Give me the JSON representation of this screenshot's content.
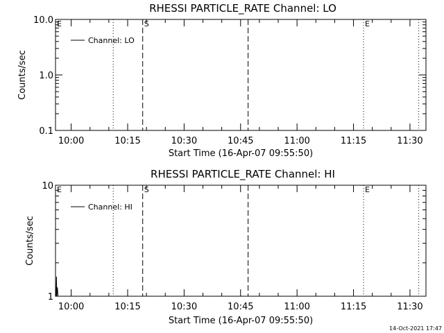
{
  "footer": {
    "timestamp": "14-Oct-2021 17:47"
  },
  "chart_data": [
    {
      "type": "line",
      "title": "RHESSI PARTICLE_RATE Channel: LO",
      "xlabel": "Start Time (16-Apr-07 09:55:50)",
      "ylabel": "Counts/sec",
      "yscale": "log",
      "ylim": [
        0.1,
        10.0
      ],
      "ytick_values": [
        0.1,
        1.0,
        10.0
      ],
      "ytick_labels": [
        "0.1",
        "1.0",
        "10.0"
      ],
      "xlim": [
        "09:55:50",
        "11:34:15"
      ],
      "xtick_values": [
        "10:00",
        "10:15",
        "10:30",
        "10:45",
        "11:00",
        "11:15",
        "11:30"
      ],
      "xtick_labels": [
        "10:00",
        "10:15",
        "10:30",
        "10:45",
        "11:00",
        "11:15",
        "11:30"
      ],
      "legend": {
        "placement": "top-left",
        "entries": [
          "Channel: LO"
        ]
      },
      "markers": [
        {
          "label": "E",
          "time": "09:55:50",
          "style": "none"
        },
        {
          "label": "",
          "time": "10:11:10",
          "style": "dotted"
        },
        {
          "label": "S",
          "time": "10:19:00",
          "style": "dashed"
        },
        {
          "label": "",
          "time": "10:47:00",
          "style": "dashed"
        },
        {
          "label": "E",
          "time": "11:17:40",
          "style": "dotted"
        },
        {
          "label": "",
          "time": "11:32:20",
          "style": "dotted"
        }
      ],
      "series": [
        {
          "name": "Channel: LO",
          "x": [],
          "y": []
        }
      ]
    },
    {
      "type": "line",
      "title": "RHESSI PARTICLE_RATE Channel: HI",
      "xlabel": "Start Time (16-Apr-07 09:55:50)",
      "ylabel": "Counts/sec",
      "yscale": "log",
      "ylim": [
        1,
        10
      ],
      "ytick_values": [
        1,
        10
      ],
      "ytick_labels": [
        "1",
        "10"
      ],
      "xlim": [
        "09:55:50",
        "11:34:15"
      ],
      "xtick_values": [
        "10:00",
        "10:15",
        "10:30",
        "10:45",
        "11:00",
        "11:15",
        "11:30"
      ],
      "xtick_labels": [
        "10:00",
        "10:15",
        "10:30",
        "10:45",
        "11:00",
        "11:15",
        "11:30"
      ],
      "legend": {
        "placement": "top-left",
        "entries": [
          "Channel: HI"
        ]
      },
      "markers": [
        {
          "label": "E",
          "time": "09:55:50",
          "style": "none"
        },
        {
          "label": "",
          "time": "10:11:10",
          "style": "dotted"
        },
        {
          "label": "S",
          "time": "10:19:00",
          "style": "dashed"
        },
        {
          "label": "",
          "time": "10:47:00",
          "style": "dashed"
        },
        {
          "label": "E",
          "time": "11:17:40",
          "style": "dotted"
        },
        {
          "label": "",
          "time": "11:32:20",
          "style": "dotted"
        }
      ],
      "series": [
        {
          "name": "Channel: HI",
          "x": [
            "09:56:00",
            "09:56:05",
            "09:56:10",
            "09:56:20",
            "09:56:30",
            "09:56:40"
          ],
          "y": [
            1.0,
            1.5,
            1.0,
            1.2,
            1.0,
            1.0
          ]
        }
      ]
    }
  ]
}
